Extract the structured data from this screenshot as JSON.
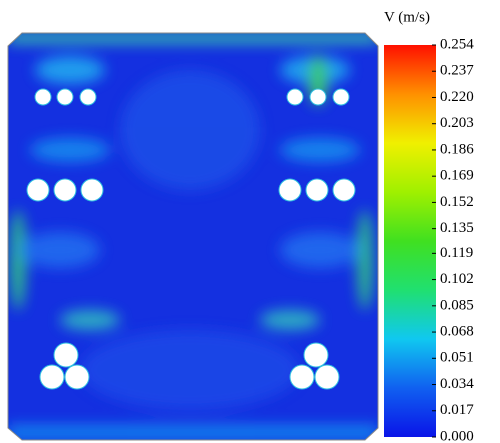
{
  "chart_data": {
    "type": "contour",
    "colorbar_title": "V (m/s)",
    "clim": [
      0,
      0.254
    ],
    "cticks": [
      {
        "value": 0,
        "label": "0.000"
      },
      0.017,
      0.034,
      0.051,
      0.068,
      0.085,
      0.102,
      0.119,
      0.135,
      0.152,
      0.169,
      0.186,
      0.203,
      {
        "value": 0.22,
        "label": "0.220"
      },
      0.237,
      0.254
    ],
    "colormap": [
      "#0a14e8",
      "#1060f0",
      "#10c8f0",
      "#20e070",
      "#40e020",
      "#a0f000",
      "#f0f000",
      "#ff9000",
      "#ff1000"
    ]
  }
}
